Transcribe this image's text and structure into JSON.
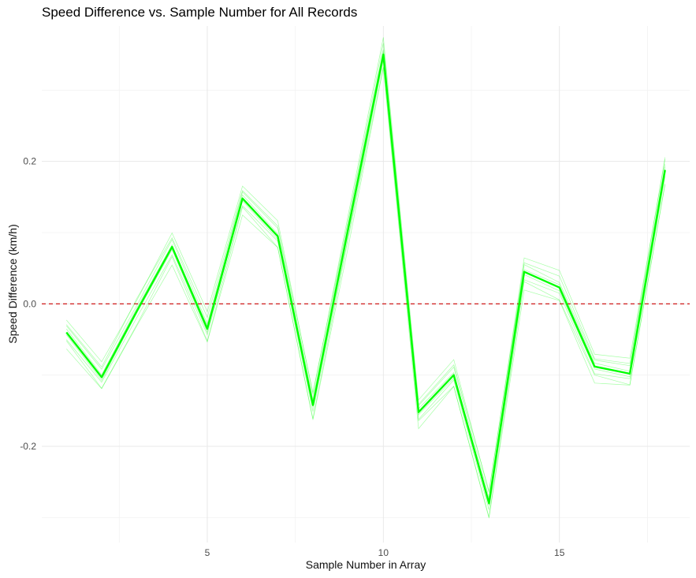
{
  "chart_data": {
    "type": "line",
    "title": "Speed Difference vs. Sample Number for All Records",
    "xlabel": "Sample Number in Array",
    "ylabel": "Speed Difference (km/h)",
    "x_ticks": [
      5,
      10,
      15
    ],
    "y_ticks": [
      -0.2,
      0.0,
      0.2
    ],
    "y_tick_labels": [
      "-0.2",
      "0.0",
      "0.2"
    ],
    "xlim": [
      0.3,
      18.7
    ],
    "ylim": [
      -0.335,
      0.39
    ],
    "grid": true,
    "line_color": "#00ff00",
    "reference_line": {
      "y": 0,
      "color": "#cc0000",
      "style": "dashed"
    },
    "x": [
      1,
      2,
      3,
      4,
      5,
      6,
      7,
      8,
      9,
      10,
      11,
      12,
      13,
      14,
      15,
      16,
      17,
      18
    ],
    "series": [
      {
        "values": [
          -0.04,
          -0.103,
          -0.01,
          0.08,
          -0.035,
          0.148,
          0.095,
          -0.142,
          0.105,
          0.35,
          -0.152,
          -0.1,
          -0.28,
          0.045,
          0.023,
          -0.088,
          -0.098,
          0.188
        ]
      }
    ]
  }
}
